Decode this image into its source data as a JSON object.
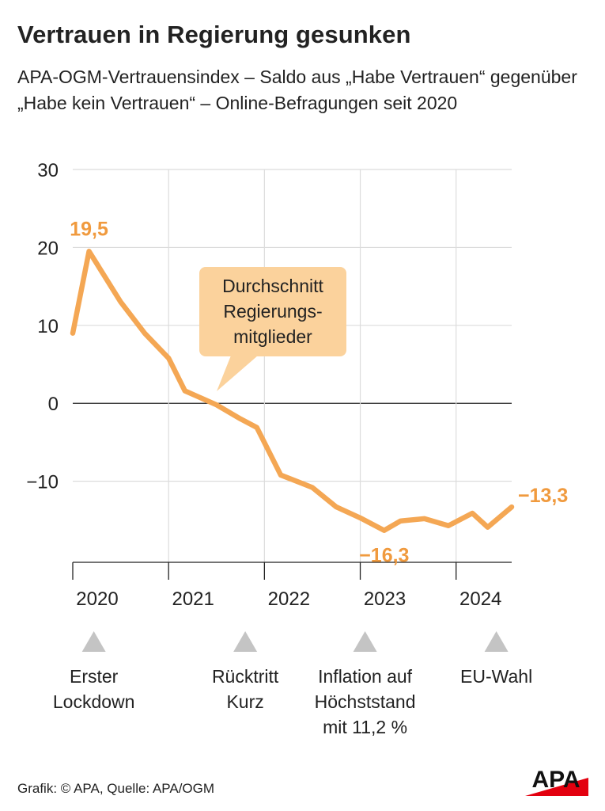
{
  "title": "Vertrauen in Regierung gesunken",
  "subtitle": "APA-OGM-Vertrauensindex – Saldo aus „Habe Vertrauen“ gegenüber „Habe kein Vertrauen“ – Online-Befragungen seit 2020",
  "source": "Grafik: © APA, Quelle: APA/OGM",
  "logo_text": "APA",
  "colors": {
    "line": "#f4a754",
    "label": "#f09a3e",
    "callout_bg": "#fbd29c",
    "grid": "#dcdcdc",
    "marker": "#c4c4c4",
    "logo_red": "#e3000f"
  },
  "chart_data": {
    "type": "line",
    "title": "Vertrauen in Regierung gesunken",
    "xlabel": "",
    "ylabel": "",
    "ylim": [
      -20,
      30
    ],
    "yticks": [
      30,
      20,
      10,
      0,
      -10
    ],
    "ytick_labels": [
      "30",
      "20",
      "10",
      "0",
      "−10"
    ],
    "xlim": [
      2020,
      2024.6
    ],
    "xticks": [
      2020,
      2021,
      2022,
      2023,
      2024
    ],
    "xtick_labels": [
      "2020",
      "2021",
      "2022",
      "2023",
      "2024"
    ],
    "grid": true,
    "series": [
      {
        "name": "Durchschnitt Regierungsmitglieder",
        "x": [
          2020.0,
          2020.17,
          2020.5,
          2020.75,
          2021.0,
          2021.17,
          2021.5,
          2021.75,
          2021.92,
          2022.17,
          2022.5,
          2022.75,
          2023.0,
          2023.25,
          2023.42,
          2023.67,
          2023.92,
          2024.17,
          2024.33,
          2024.58
        ],
        "y": [
          9.0,
          19.5,
          13.0,
          9.0,
          5.8,
          1.6,
          -0.2,
          -2.0,
          -3.1,
          -9.2,
          -10.8,
          -13.3,
          -14.7,
          -16.3,
          -15.1,
          -14.8,
          -15.7,
          -14.1,
          -15.9,
          -13.3
        ]
      }
    ],
    "data_labels": [
      {
        "text": "19,5",
        "x": 2020.17,
        "y": 19.5
      },
      {
        "text": "−16,3",
        "x": 2023.25,
        "y": -16.3
      },
      {
        "text": "−13,3",
        "x": 2024.58,
        "y": -13.3
      }
    ],
    "callout": {
      "lines": [
        "Durchschnitt",
        "Regierungs-",
        "mitglieder"
      ]
    },
    "events": [
      {
        "x": 2020.22,
        "lines": [
          "Erster",
          "Lockdown"
        ]
      },
      {
        "x": 2021.8,
        "lines": [
          "Rücktritt",
          "Kurz"
        ]
      },
      {
        "x": 2023.05,
        "lines": [
          "Inflation auf",
          "Höchststand",
          "mit 11,2 %"
        ]
      },
      {
        "x": 2024.42,
        "lines": [
          "EU-Wahl"
        ]
      }
    ]
  }
}
